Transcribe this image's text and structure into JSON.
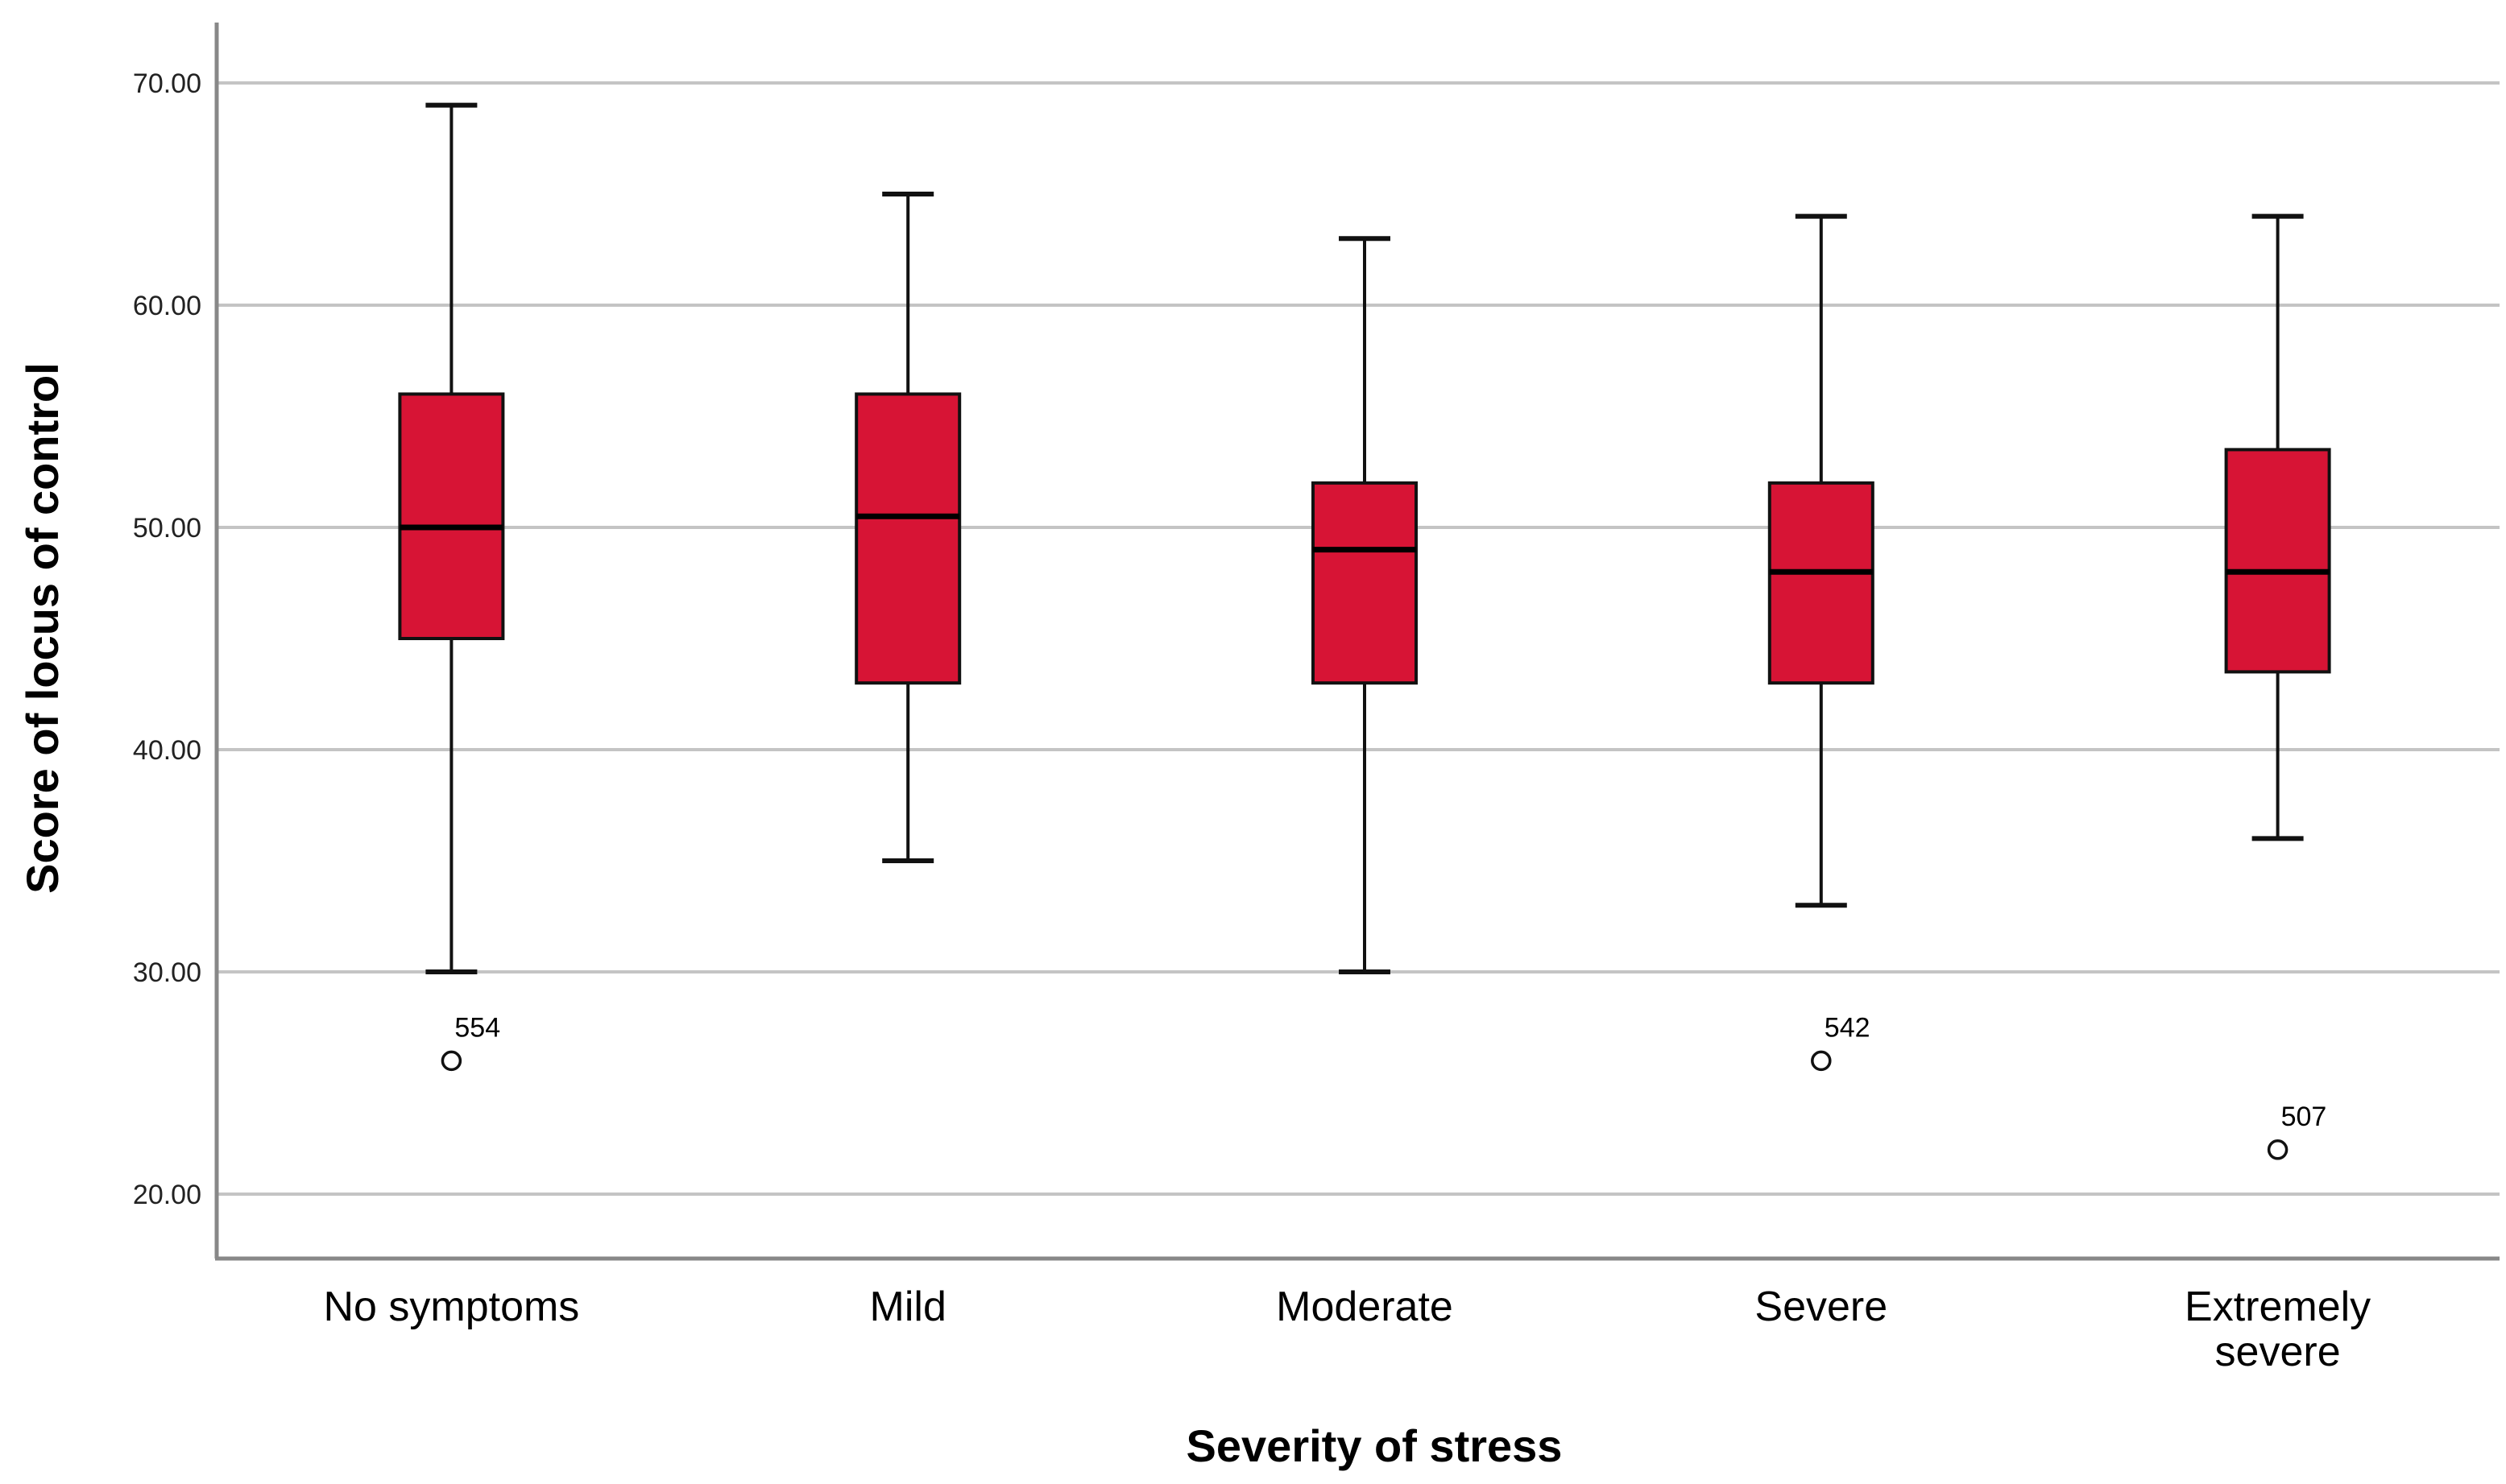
{
  "chart_data": {
    "type": "boxplot",
    "xlabel": "Severity of stress",
    "ylabel": "Score of locus of control",
    "ylim": [
      17,
      72.5
    ],
    "yticks": [
      20,
      30,
      40,
      50,
      60,
      70
    ],
    "ytick_labels": [
      "20.00",
      "30.00",
      "40.00",
      "50.00",
      "60.00",
      "70.00"
    ],
    "grid": "horizontal",
    "box_color": "#D71435",
    "categories": [
      {
        "label": [
          "No symptoms"
        ],
        "whisker_low": 30,
        "q1": 45,
        "median": 50,
        "q3": 56,
        "whisker_high": 69,
        "outliers": [
          {
            "value": 26,
            "label": "554"
          }
        ]
      },
      {
        "label": [
          "Mild"
        ],
        "whisker_low": 35,
        "q1": 43,
        "median": 50.5,
        "q3": 56,
        "whisker_high": 65,
        "outliers": []
      },
      {
        "label": [
          "Moderate"
        ],
        "whisker_low": 30,
        "q1": 43,
        "median": 49,
        "q3": 52,
        "whisker_high": 63,
        "outliers": []
      },
      {
        "label": [
          "Severe"
        ],
        "whisker_low": 33,
        "q1": 43,
        "median": 48,
        "q3": 52,
        "whisker_high": 64,
        "outliers": [
          {
            "value": 26,
            "label": "542"
          }
        ]
      },
      {
        "label": [
          "Extremely",
          "severe"
        ],
        "whisker_low": 36,
        "q1": 43.5,
        "median": 48,
        "q3": 53.5,
        "whisker_high": 64,
        "outliers": [
          {
            "value": 22,
            "label": "507"
          }
        ]
      }
    ]
  }
}
